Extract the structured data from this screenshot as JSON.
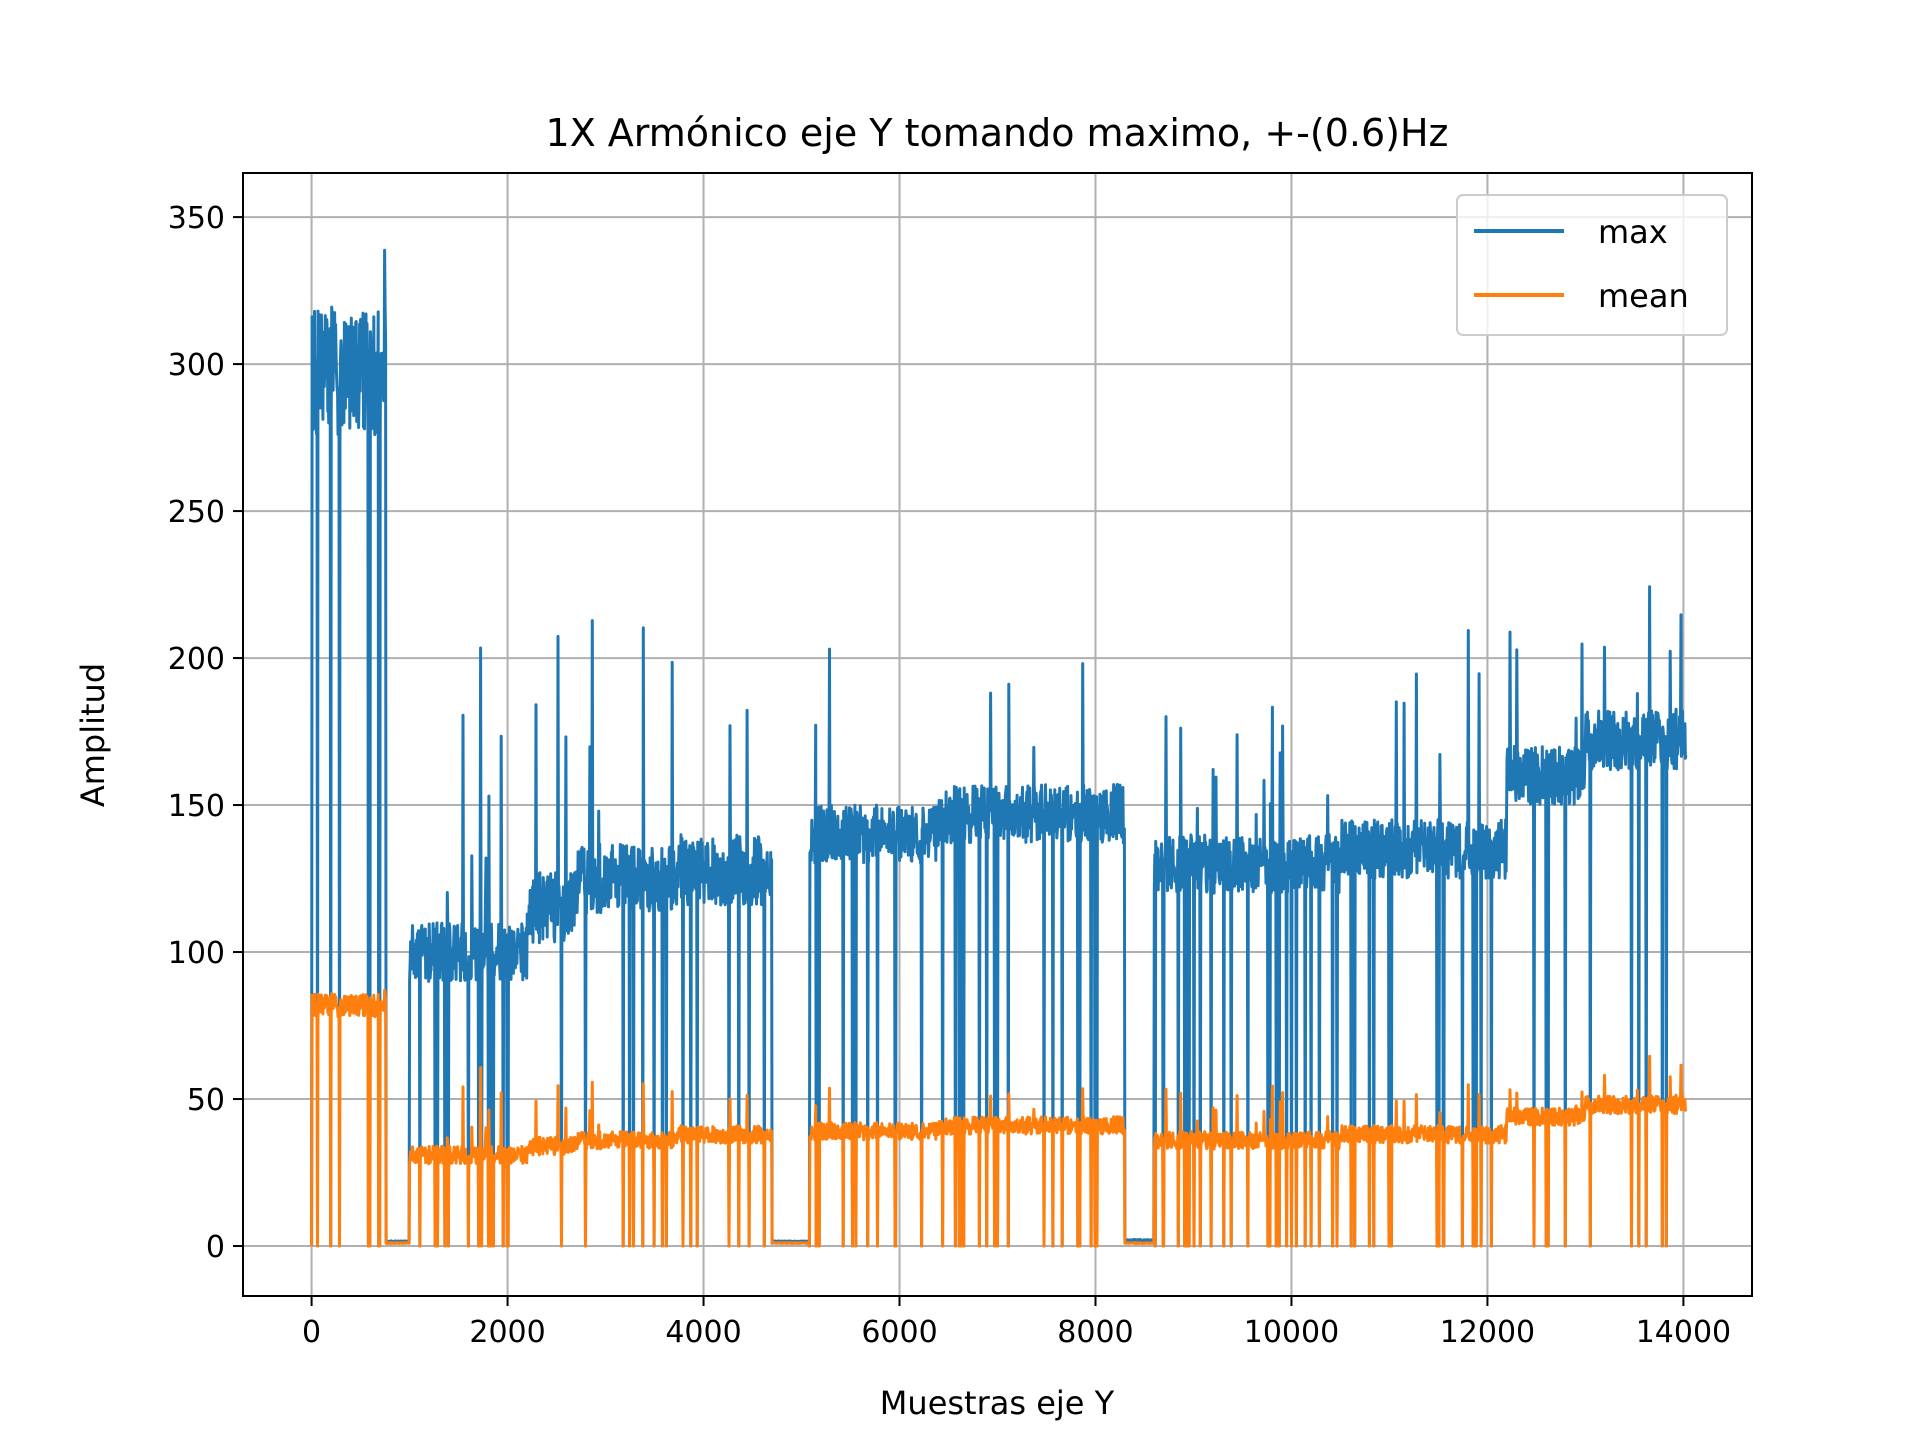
{
  "chart_data": {
    "type": "line",
    "title": "1X Armónico eje Y tomando maximo, +-(0.6)Hz",
    "xlabel": "Muestras eje Y",
    "ylabel": "Amplitud",
    "xlim": [
      -700,
      14700
    ],
    "ylim": [
      -17,
      365
    ],
    "x_ticks": [
      0,
      2000,
      4000,
      6000,
      8000,
      10000,
      12000,
      14000
    ],
    "x_tick_labels": [
      "0",
      "2000",
      "4000",
      "6000",
      "8000",
      "10000",
      "12000",
      "14000"
    ],
    "y_ticks": [
      0,
      50,
      100,
      150,
      200,
      250,
      300,
      350
    ],
    "y_tick_labels": [
      "0",
      "50",
      "100",
      "150",
      "200",
      "250",
      "300",
      "350"
    ],
    "grid": true,
    "legend": {
      "position": "top-right"
    },
    "series": [
      {
        "name": "max",
        "color": "#1f77b4",
        "segments": [
          {
            "x": [
              0,
              760
            ],
            "base": 298,
            "noise": 22,
            "spike_max": 347
          },
          {
            "x": [
              760,
              1000
            ],
            "base": 1.5,
            "noise": 0.5,
            "spike_max": 2
          },
          {
            "x": [
              1000,
              2200
            ],
            "base": 100,
            "noise": 10,
            "spike_max": 208
          },
          {
            "x": [
              2200,
              2700
            ],
            "base": 115,
            "noise": 12,
            "spike_max": 214
          },
          {
            "x": [
              2700,
              3700
            ],
            "base": 125,
            "noise": 12,
            "spike_max": 214
          },
          {
            "x": [
              3700,
              4700
            ],
            "base": 128,
            "noise": 12,
            "spike_max": 185
          },
          {
            "x": [
              4700,
              5080
            ],
            "base": 1.5,
            "noise": 0.5,
            "spike_max": 2
          },
          {
            "x": [
              5080,
              6400
            ],
            "base": 140,
            "noise": 10,
            "spike_max": 213
          },
          {
            "x": [
              6400,
              8300
            ],
            "base": 147,
            "noise": 10,
            "spike_max": 229
          },
          {
            "x": [
              8300,
              8600
            ],
            "base": 2,
            "noise": 0.5,
            "spike_max": 3
          },
          {
            "x": [
              8600,
              10500
            ],
            "base": 130,
            "noise": 10,
            "spike_max": 185
          },
          {
            "x": [
              10500,
              12200
            ],
            "base": 135,
            "noise": 10,
            "spike_max": 210
          },
          {
            "x": [
              12200,
              13000
            ],
            "base": 160,
            "noise": 10,
            "spike_max": 224
          },
          {
            "x": [
              13000,
              14030
            ],
            "base": 172,
            "noise": 10,
            "spike_max": 232
          }
        ]
      },
      {
        "name": "mean",
        "color": "#ff7f0e",
        "segments": [
          {
            "x": [
              0,
              760
            ],
            "base": 82,
            "noise": 4,
            "spike_max": 88
          },
          {
            "x": [
              760,
              1000
            ],
            "base": 1,
            "noise": 0.3,
            "spike_max": 1
          },
          {
            "x": [
              1000,
              2200
            ],
            "base": 31,
            "noise": 3,
            "spike_max": 62
          },
          {
            "x": [
              2200,
              2700
            ],
            "base": 34,
            "noise": 3,
            "spike_max": 56
          },
          {
            "x": [
              2700,
              3700
            ],
            "base": 36,
            "noise": 3,
            "spike_max": 56
          },
          {
            "x": [
              3700,
              4700
            ],
            "base": 38,
            "noise": 3,
            "spike_max": 52
          },
          {
            "x": [
              4700,
              5080
            ],
            "base": 1,
            "noise": 0.3,
            "spike_max": 1
          },
          {
            "x": [
              5080,
              6400
            ],
            "base": 39,
            "noise": 3,
            "spike_max": 56
          },
          {
            "x": [
              6400,
              8300
            ],
            "base": 41,
            "noise": 3,
            "spike_max": 61
          },
          {
            "x": [
              8300,
              8600
            ],
            "base": 1,
            "noise": 0.3,
            "spike_max": 1
          },
          {
            "x": [
              8600,
              10500
            ],
            "base": 36,
            "noise": 3,
            "spike_max": 55
          },
          {
            "x": [
              10500,
              12200
            ],
            "base": 38,
            "noise": 3,
            "spike_max": 55
          },
          {
            "x": [
              12200,
              13000
            ],
            "base": 44,
            "noise": 3,
            "spike_max": 56
          },
          {
            "x": [
              13000,
              14030
            ],
            "base": 48,
            "noise": 3,
            "spike_max": 67
          }
        ]
      }
    ]
  }
}
